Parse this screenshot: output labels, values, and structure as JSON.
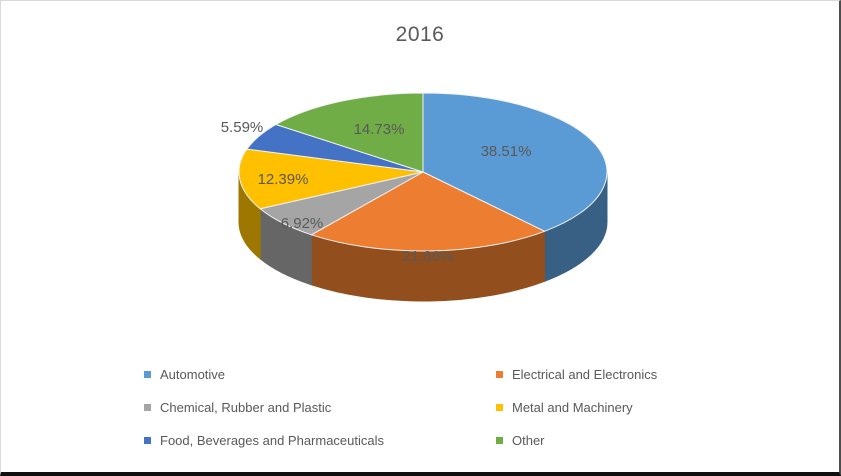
{
  "chart_data": {
    "type": "pie",
    "style": "3d",
    "title": "2016",
    "categories": [
      "Automotive",
      "Electrical and Electronics",
      "Chemical, Rubber and Plastic",
      "Metal and Machinery",
      "Food, Beverages and Pharmaceuticals",
      "Other"
    ],
    "values": [
      38.51,
      21.86,
      6.92,
      12.39,
      5.59,
      14.73
    ],
    "labels": [
      "38.51%",
      "21.86%",
      "6.92%",
      "12.39%",
      "5.59%",
      "14.73%"
    ],
    "colors": [
      "#5B9BD5",
      "#ED7D31",
      "#A5A5A5",
      "#FFC000",
      "#4472C4",
      "#70AD47"
    ],
    "title_color": "#595959",
    "label_color": "#595959",
    "start_angle_deg": 0,
    "direction": "clockwise",
    "legend_position": "bottom"
  }
}
